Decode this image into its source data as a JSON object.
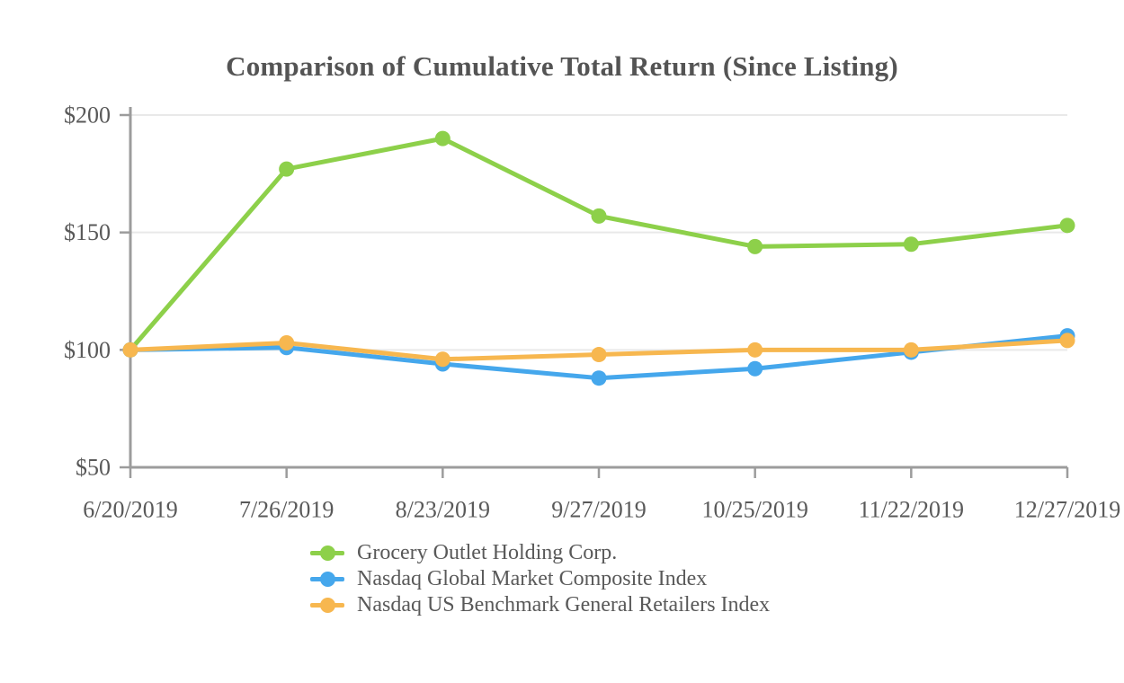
{
  "chart_data": {
    "type": "line",
    "title": "Comparison of Cumulative Total Return (Since Listing)",
    "categories": [
      "6/20/2019",
      "7/26/2019",
      "8/23/2019",
      "9/27/2019",
      "10/25/2019",
      "11/22/2019",
      "12/27/2019"
    ],
    "series": [
      {
        "name": "Grocery Outlet Holding Corp.",
        "color": "#8DD04A",
        "values": [
          100,
          177,
          190,
          157,
          144,
          145,
          153
        ]
      },
      {
        "name": "Nasdaq Global Market Composite Index",
        "color": "#45A7EC",
        "values": [
          100,
          101,
          94,
          88,
          92,
          99,
          106
        ]
      },
      {
        "name": "Nasdaq US Benchmark General Retailers Index",
        "color": "#F7B74F",
        "values": [
          100,
          103,
          96,
          98,
          100,
          100,
          104
        ]
      }
    ],
    "ylim": [
      50,
      200
    ],
    "yticks": [
      {
        "value": 50,
        "label": "$50"
      },
      {
        "value": 100,
        "label": "$100"
      },
      {
        "value": 150,
        "label": "$150"
      },
      {
        "value": 200,
        "label": "$200"
      }
    ],
    "grid_values": [
      100,
      150,
      200
    ],
    "grid": true,
    "legend_position": "bottom-left"
  },
  "style": {
    "axis_color": "#9C9C9C",
    "grid_color": "#E9E9E9",
    "text_color": "#595959",
    "title_color": "#545454"
  }
}
